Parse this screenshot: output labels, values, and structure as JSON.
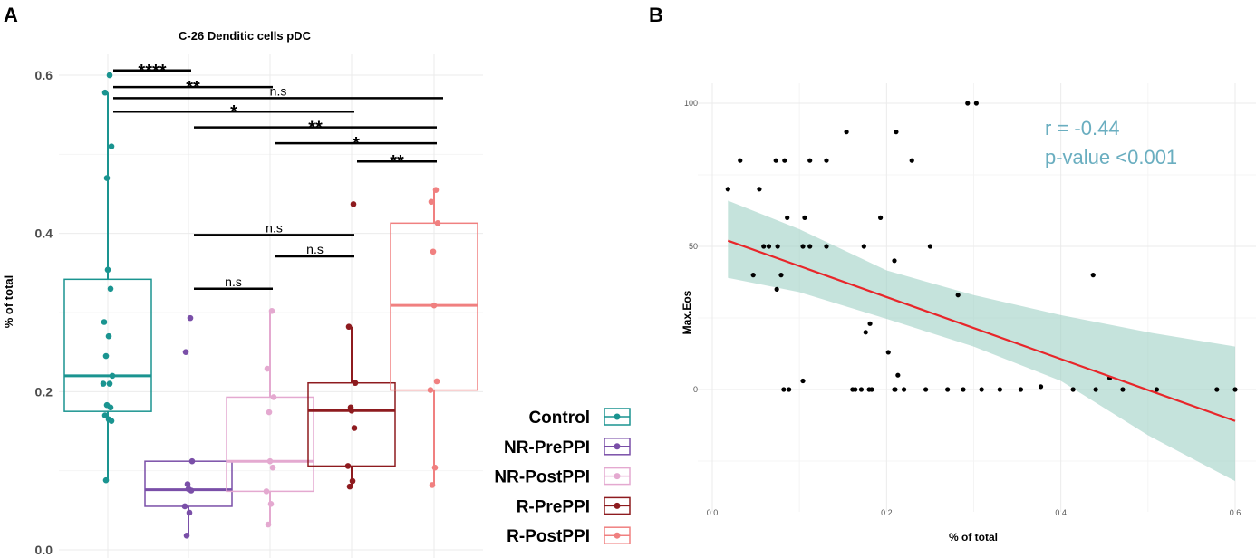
{
  "chart_data": [
    {
      "type": "box",
      "panel_label": "A",
      "title": "C-26 Denditic cells pDC",
      "xlabel": "",
      "ylabel": "% of total",
      "ylim": [
        0,
        0.64
      ],
      "yticks": [
        "0.0",
        "0.2",
        "0.4",
        "0.6"
      ],
      "ytick_values": [
        0,
        0.2,
        0.4,
        0.6
      ],
      "legend_position": "right",
      "groups": [
        {
          "name": "Control",
          "color": "#1a9490",
          "q1": 0.175,
          "median": 0.22,
          "q3": 0.342,
          "whisker_low": 0.088,
          "whisker_high": 0.578,
          "points": [
            0.6,
            0.578,
            0.51,
            0.47,
            0.354,
            0.33,
            0.288,
            0.27,
            0.245,
            0.22,
            0.21,
            0.21,
            0.183,
            0.18,
            0.17,
            0.165,
            0.163,
            0.088
          ]
        },
        {
          "name": "NR-PrePPI",
          "color": "#7a4fa8",
          "q1": 0.055,
          "median": 0.076,
          "q3": 0.112,
          "whisker_low": 0.018,
          "whisker_high": 0.112,
          "points": [
            0.293,
            0.25,
            0.112,
            0.083,
            0.077,
            0.075,
            0.055,
            0.047,
            0.018
          ]
        },
        {
          "name": "NR-PostPPI",
          "color": "#e4a9d0",
          "q1": 0.074,
          "median": 0.112,
          "q3": 0.193,
          "whisker_low": 0.032,
          "whisker_high": 0.302,
          "points": [
            0.302,
            0.229,
            0.193,
            0.174,
            0.112,
            0.104,
            0.074,
            0.058,
            0.032
          ]
        },
        {
          "name": "R-PrePPI",
          "color": "#8e1b1f",
          "q1": 0.106,
          "median": 0.176,
          "q3": 0.211,
          "whisker_low": 0.08,
          "whisker_high": 0.282,
          "points": [
            0.437,
            0.282,
            0.211,
            0.18,
            0.176,
            0.154,
            0.106,
            0.087,
            0.08
          ]
        },
        {
          "name": "R-PostPPI",
          "color": "#f08080",
          "q1": 0.202,
          "median": 0.309,
          "q3": 0.413,
          "whisker_low": 0.082,
          "whisker_high": 0.455,
          "points": [
            0.455,
            0.44,
            0.413,
            0.377,
            0.309,
            0.213,
            0.202,
            0.104,
            0.082
          ]
        }
      ],
      "comparisons": [
        {
          "from": 0,
          "to": 1,
          "y": 0.606,
          "label": "****"
        },
        {
          "from": 0,
          "to": 2,
          "y": 0.585,
          "label": "**"
        },
        {
          "from": 0,
          "to": 4,
          "y": 0.571,
          "label": "n.s"
        },
        {
          "from": 0,
          "to": 3,
          "y": 0.554,
          "label": "*"
        },
        {
          "from": 1,
          "to": 4,
          "y": 0.534,
          "label": "**"
        },
        {
          "from": 2,
          "to": 4,
          "y": 0.514,
          "label": "*"
        },
        {
          "from": 3,
          "to": 4,
          "y": 0.491,
          "label": "**"
        },
        {
          "from": 1,
          "to": 3,
          "y": 0.398,
          "label": "n.s"
        },
        {
          "from": 2,
          "to": 3,
          "y": 0.371,
          "label": "n.s"
        },
        {
          "from": 1,
          "to": 2,
          "y": 0.33,
          "label": "n.s"
        }
      ]
    },
    {
      "type": "scatter",
      "panel_label": "B",
      "xlabel": "% of total",
      "ylabel": "Max.Eos",
      "xlim": [
        0,
        0.6
      ],
      "ylim": [
        -38,
        107
      ],
      "xticks": [
        "0.0",
        "0.2",
        "0.4",
        "0.6"
      ],
      "xtick_values": [
        0,
        0.2,
        0.4,
        0.6
      ],
      "yticks": [
        "0",
        "50",
        "100"
      ],
      "ytick_values": [
        0,
        50,
        100
      ],
      "annotation": [
        "r = -0.44",
        "p-value <0.001"
      ],
      "annotation_color": "#6aaec0",
      "fit_line": {
        "color": "#e8262a",
        "x": [
          0.018,
          0.6
        ],
        "y": [
          52,
          -11
        ]
      },
      "confidence_band": {
        "color": "#9fd0c5",
        "x": [
          0.018,
          0.1,
          0.2,
          0.3,
          0.4,
          0.5,
          0.6
        ],
        "upper": [
          66,
          56,
          41.6,
          33,
          26,
          20,
          15
        ],
        "lower": [
          39,
          34,
          24.7,
          15,
          3,
          -16,
          -32
        ]
      },
      "points": [
        [
          0.018,
          70
        ],
        [
          0.032,
          80
        ],
        [
          0.054,
          70
        ],
        [
          0.073,
          80
        ],
        [
          0.083,
          80
        ],
        [
          0.112,
          80
        ],
        [
          0.131,
          80
        ],
        [
          0.154,
          90
        ],
        [
          0.211,
          90
        ],
        [
          0.229,
          80
        ],
        [
          0.293,
          100
        ],
        [
          0.303,
          100
        ],
        [
          0.086,
          60
        ],
        [
          0.106,
          60
        ],
        [
          0.193,
          60
        ],
        [
          0.059,
          50
        ],
        [
          0.065,
          50
        ],
        [
          0.075,
          50
        ],
        [
          0.104,
          50
        ],
        [
          0.112,
          50
        ],
        [
          0.131,
          50
        ],
        [
          0.174,
          50
        ],
        [
          0.25,
          50
        ],
        [
          0.209,
          45
        ],
        [
          0.047,
          40
        ],
        [
          0.079,
          40
        ],
        [
          0.437,
          40
        ],
        [
          0.074,
          35
        ],
        [
          0.282,
          33
        ],
        [
          0.181,
          23
        ],
        [
          0.176,
          20
        ],
        [
          0.202,
          13
        ],
        [
          0.213,
          5
        ],
        [
          0.104,
          3
        ],
        [
          0.456,
          4
        ],
        [
          0.377,
          1
        ],
        [
          0.082,
          0
        ],
        [
          0.088,
          0
        ],
        [
          0.161,
          0
        ],
        [
          0.164,
          0
        ],
        [
          0.171,
          0
        ],
        [
          0.18,
          0
        ],
        [
          0.183,
          0
        ],
        [
          0.209,
          0
        ],
        [
          0.21,
          0
        ],
        [
          0.22,
          0
        ],
        [
          0.245,
          0
        ],
        [
          0.27,
          0
        ],
        [
          0.288,
          0
        ],
        [
          0.309,
          0
        ],
        [
          0.33,
          0
        ],
        [
          0.354,
          0
        ],
        [
          0.414,
          0
        ],
        [
          0.44,
          0
        ],
        [
          0.471,
          0
        ],
        [
          0.51,
          0
        ],
        [
          0.579,
          0
        ],
        [
          0.6,
          0
        ]
      ]
    }
  ]
}
